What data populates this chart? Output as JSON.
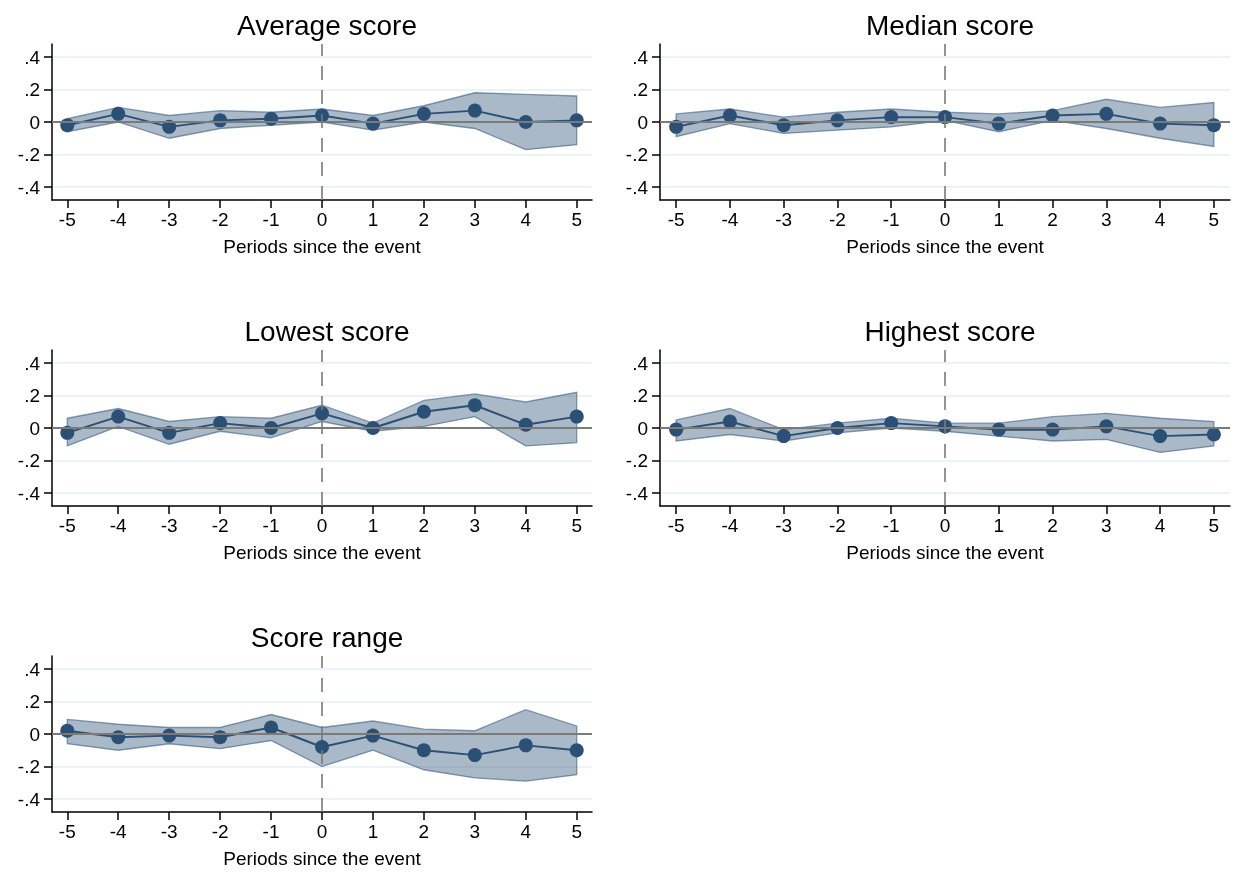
{
  "chart_data": [
    {
      "type": "line",
      "title": "Average score",
      "xlabel": "Periods since the event",
      "x": [
        -5,
        -4,
        -3,
        -2,
        -1,
        0,
        1,
        2,
        3,
        4,
        5
      ],
      "xlim": [
        -5.3,
        5.3
      ],
      "xticks": [
        -5,
        -4,
        -3,
        -2,
        -1,
        0,
        1,
        2,
        3,
        4,
        5
      ],
      "ylim": [
        -0.48,
        0.48
      ],
      "yticks": [
        {
          "value": -0.4,
          "label": "-.4"
        },
        {
          "value": -0.2,
          "label": "-.2"
        },
        {
          "value": 0,
          "label": "0"
        },
        {
          "value": 0.2,
          "label": ".2"
        },
        {
          "value": 0.4,
          "label": ".4"
        }
      ],
      "grid": "y",
      "marker": "circle",
      "line_style": "solid",
      "series": [
        {
          "color": "#2b5075",
          "values": [
            -0.02,
            0.05,
            -0.03,
            0.01,
            0.02,
            0.04,
            -0.01,
            0.05,
            0.07,
            0.0,
            0.01
          ],
          "lower": [
            -0.06,
            0.0,
            -0.1,
            -0.04,
            -0.02,
            0.0,
            -0.05,
            0.0,
            -0.04,
            -0.17,
            -0.14
          ],
          "upper": [
            0.02,
            0.09,
            0.04,
            0.07,
            0.06,
            0.08,
            0.04,
            0.1,
            0.18,
            0.17,
            0.16
          ]
        }
      ],
      "ref_lines": [
        {
          "axis": "y",
          "value": 0,
          "color": "#7a7a7a",
          "line_style": "solid"
        },
        {
          "axis": "x",
          "value": 0,
          "color": "#7a7a7a",
          "line_style": "dashed"
        }
      ]
    },
    {
      "type": "line",
      "title": "Median score",
      "xlabel": "Periods since the event",
      "x": [
        -5,
        -4,
        -3,
        -2,
        -1,
        0,
        1,
        2,
        3,
        4,
        5
      ],
      "xlim": [
        -5.3,
        5.3
      ],
      "xticks": [
        -5,
        -4,
        -3,
        -2,
        -1,
        0,
        1,
        2,
        3,
        4,
        5
      ],
      "ylim": [
        -0.48,
        0.48
      ],
      "yticks": [
        {
          "value": -0.4,
          "label": "-.4"
        },
        {
          "value": -0.2,
          "label": "-.2"
        },
        {
          "value": 0,
          "label": "0"
        },
        {
          "value": 0.2,
          "label": ".2"
        },
        {
          "value": 0.4,
          "label": ".4"
        }
      ],
      "grid": "y",
      "marker": "circle",
      "line_style": "solid",
      "series": [
        {
          "color": "#2b5075",
          "values": [
            -0.03,
            0.04,
            -0.02,
            0.01,
            0.03,
            0.03,
            -0.01,
            0.04,
            0.05,
            -0.01,
            -0.02
          ],
          "lower": [
            -0.09,
            -0.01,
            -0.07,
            -0.05,
            -0.03,
            0.01,
            -0.06,
            0.01,
            -0.04,
            -0.1,
            -0.15
          ],
          "upper": [
            0.05,
            0.08,
            0.03,
            0.06,
            0.08,
            0.06,
            0.05,
            0.07,
            0.14,
            0.09,
            0.12
          ]
        }
      ],
      "ref_lines": [
        {
          "axis": "y",
          "value": 0,
          "color": "#7a7a7a",
          "line_style": "solid"
        },
        {
          "axis": "x",
          "value": 0,
          "color": "#7a7a7a",
          "line_style": "dashed"
        }
      ]
    },
    {
      "type": "line",
      "title": "Lowest score",
      "xlabel": "Periods since the event",
      "x": [
        -5,
        -4,
        -3,
        -2,
        -1,
        0,
        1,
        2,
        3,
        4,
        5
      ],
      "xlim": [
        -5.3,
        5.3
      ],
      "xticks": [
        -5,
        -4,
        -3,
        -2,
        -1,
        0,
        1,
        2,
        3,
        4,
        5
      ],
      "ylim": [
        -0.48,
        0.48
      ],
      "yticks": [
        {
          "value": -0.4,
          "label": "-.4"
        },
        {
          "value": -0.2,
          "label": "-.2"
        },
        {
          "value": 0,
          "label": "0"
        },
        {
          "value": 0.2,
          "label": ".2"
        },
        {
          "value": 0.4,
          "label": ".4"
        }
      ],
      "grid": "y",
      "marker": "circle",
      "line_style": "solid",
      "series": [
        {
          "color": "#2b5075",
          "values": [
            -0.03,
            0.07,
            -0.03,
            0.03,
            0.0,
            0.09,
            0.0,
            0.1,
            0.14,
            0.02,
            0.07
          ],
          "lower": [
            -0.11,
            0.01,
            -0.1,
            -0.02,
            -0.06,
            0.04,
            -0.02,
            0.01,
            0.07,
            -0.11,
            -0.09
          ],
          "upper": [
            0.06,
            0.12,
            0.04,
            0.07,
            0.06,
            0.14,
            0.03,
            0.17,
            0.21,
            0.16,
            0.22
          ]
        }
      ],
      "ref_lines": [
        {
          "axis": "y",
          "value": 0,
          "color": "#7a7a7a",
          "line_style": "solid"
        },
        {
          "axis": "x",
          "value": 0,
          "color": "#7a7a7a",
          "line_style": "dashed"
        }
      ]
    },
    {
      "type": "line",
      "title": "Highest score",
      "xlabel": "Periods since the event",
      "x": [
        -5,
        -4,
        -3,
        -2,
        -1,
        0,
        1,
        2,
        3,
        4,
        5
      ],
      "xlim": [
        -5.3,
        5.3
      ],
      "xticks": [
        -5,
        -4,
        -3,
        -2,
        -1,
        0,
        1,
        2,
        3,
        4,
        5
      ],
      "ylim": [
        -0.48,
        0.48
      ],
      "yticks": [
        {
          "value": -0.4,
          "label": "-.4"
        },
        {
          "value": -0.2,
          "label": "-.2"
        },
        {
          "value": 0,
          "label": "0"
        },
        {
          "value": 0.2,
          "label": ".2"
        },
        {
          "value": 0.4,
          "label": ".4"
        }
      ],
      "grid": "y",
      "marker": "circle",
      "line_style": "solid",
      "series": [
        {
          "color": "#2b5075",
          "values": [
            -0.01,
            0.04,
            -0.05,
            0.0,
            0.03,
            0.01,
            -0.01,
            -0.01,
            0.01,
            -0.05,
            -0.04
          ],
          "lower": [
            -0.08,
            -0.04,
            -0.08,
            -0.03,
            0.0,
            -0.02,
            -0.05,
            -0.08,
            -0.07,
            -0.15,
            -0.11
          ],
          "upper": [
            0.05,
            0.12,
            -0.01,
            0.03,
            0.06,
            0.03,
            0.03,
            0.07,
            0.09,
            0.06,
            0.04
          ]
        }
      ],
      "ref_lines": [
        {
          "axis": "y",
          "value": 0,
          "color": "#7a7a7a",
          "line_style": "solid"
        },
        {
          "axis": "x",
          "value": 0,
          "color": "#7a7a7a",
          "line_style": "dashed"
        }
      ]
    },
    {
      "type": "line",
      "title": "Score range",
      "xlabel": "Periods since the event",
      "x": [
        -5,
        -4,
        -3,
        -2,
        -1,
        0,
        1,
        2,
        3,
        4,
        5
      ],
      "xlim": [
        -5.3,
        5.3
      ],
      "xticks": [
        -5,
        -4,
        -3,
        -2,
        -1,
        0,
        1,
        2,
        3,
        4,
        5
      ],
      "ylim": [
        -0.48,
        0.48
      ],
      "yticks": [
        {
          "value": -0.4,
          "label": "-.4"
        },
        {
          "value": -0.2,
          "label": "-.2"
        },
        {
          "value": 0,
          "label": "0"
        },
        {
          "value": 0.2,
          "label": ".2"
        },
        {
          "value": 0.4,
          "label": ".4"
        }
      ],
      "grid": "y",
      "marker": "circle",
      "line_style": "solid",
      "series": [
        {
          "color": "#2b5075",
          "values": [
            0.02,
            -0.02,
            -0.01,
            -0.02,
            0.04,
            -0.08,
            -0.01,
            -0.1,
            -0.13,
            -0.07,
            -0.1
          ],
          "lower": [
            -0.06,
            -0.1,
            -0.06,
            -0.09,
            -0.04,
            -0.2,
            -0.1,
            -0.22,
            -0.27,
            -0.29,
            -0.25
          ],
          "upper": [
            0.09,
            0.06,
            0.04,
            0.04,
            0.12,
            0.04,
            0.08,
            0.03,
            0.02,
            0.15,
            0.05
          ]
        }
      ],
      "ref_lines": [
        {
          "axis": "y",
          "value": 0,
          "color": "#7a7a7a",
          "line_style": "solid"
        },
        {
          "axis": "x",
          "value": 0,
          "color": "#7a7a7a",
          "line_style": "dashed"
        }
      ]
    }
  ]
}
